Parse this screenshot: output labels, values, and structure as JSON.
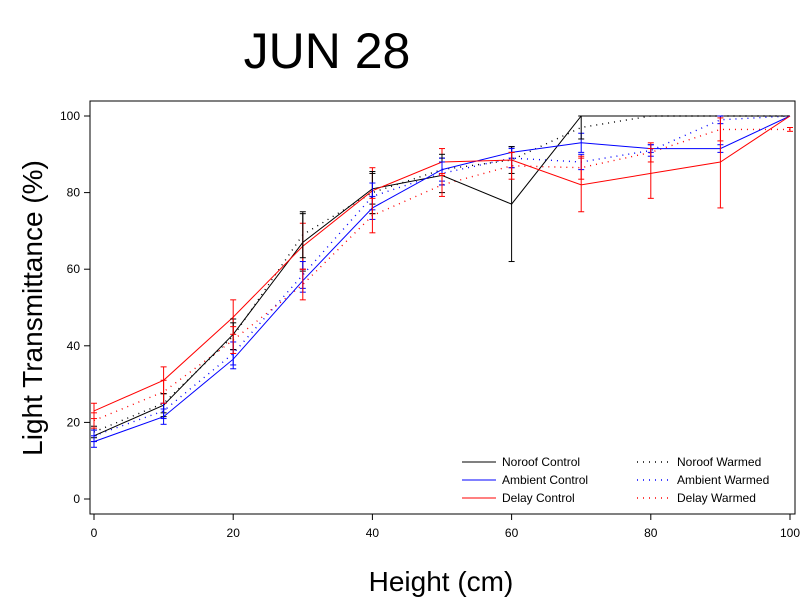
{
  "chart_data": {
    "type": "line",
    "title": "JUN 28",
    "xlabel": "Height (cm)",
    "ylabel": "Light Transmittance (%)",
    "xlim": [
      0,
      100
    ],
    "ylim": [
      0,
      100
    ],
    "x_ticks": [
      0,
      20,
      40,
      60,
      80,
      100
    ],
    "y_ticks": [
      0,
      20,
      40,
      60,
      80,
      100
    ],
    "grid": false,
    "legend_position": "bottom-right",
    "x": [
      0,
      10,
      20,
      30,
      40,
      50,
      60,
      70,
      80,
      90,
      100
    ],
    "series": [
      {
        "name": "Noroof Control",
        "color": "#000000",
        "style": "solid",
        "values": [
          16.5,
          24.5,
          43,
          67,
          81,
          84.5,
          77,
          100,
          100,
          100,
          100
        ],
        "errors": [
          1.5,
          3,
          4,
          7.5,
          4,
          4.5,
          15,
          0,
          0,
          0,
          0
        ]
      },
      {
        "name": "Ambient Control",
        "color": "#0000ff",
        "style": "solid",
        "values": [
          15,
          21.5,
          36.5,
          57,
          76,
          86,
          90.5,
          93,
          91.5,
          91.5,
          100
        ],
        "errors": [
          1.5,
          2,
          2.5,
          3,
          3,
          3,
          1.5,
          2.5,
          1,
          1,
          0
        ]
      },
      {
        "name": "Delay Control",
        "color": "#ff0000",
        "style": "solid",
        "values": [
          23,
          31,
          47.5,
          66,
          80.5,
          88,
          88.5,
          82,
          85,
          88,
          100
        ],
        "errors": [
          2,
          3.5,
          4.5,
          6,
          6,
          3.5,
          2,
          7,
          6.5,
          12,
          0
        ]
      },
      {
        "name": "Noroof Warmed",
        "color": "#000000",
        "style": "dotted",
        "values": [
          17.5,
          25,
          42.5,
          69,
          80,
          86,
          88.5,
          97,
          100,
          100,
          100
        ],
        "errors": [
          1.5,
          2.5,
          3.5,
          6,
          5.5,
          4,
          3.5,
          3,
          0,
          0,
          0
        ]
      },
      {
        "name": "Ambient Warmed",
        "color": "#0000ff",
        "style": "dotted",
        "values": [
          16.5,
          23,
          38,
          58.5,
          79,
          85,
          89,
          88,
          91,
          99,
          100
        ],
        "errors": [
          1.5,
          2,
          3,
          3.5,
          3.5,
          3,
          2.5,
          2,
          1.5,
          1,
          0
        ]
      },
      {
        "name": "Delay Warmed",
        "color": "#ff0000",
        "style": "dotted",
        "values": [
          20.5,
          28,
          41.5,
          56,
          74,
          82,
          87,
          86.5,
          90.5,
          96.5,
          96.5
        ],
        "errors": [
          2,
          3,
          3.5,
          4,
          4.5,
          3,
          3.5,
          3,
          2.5,
          3,
          0.5
        ]
      }
    ]
  }
}
